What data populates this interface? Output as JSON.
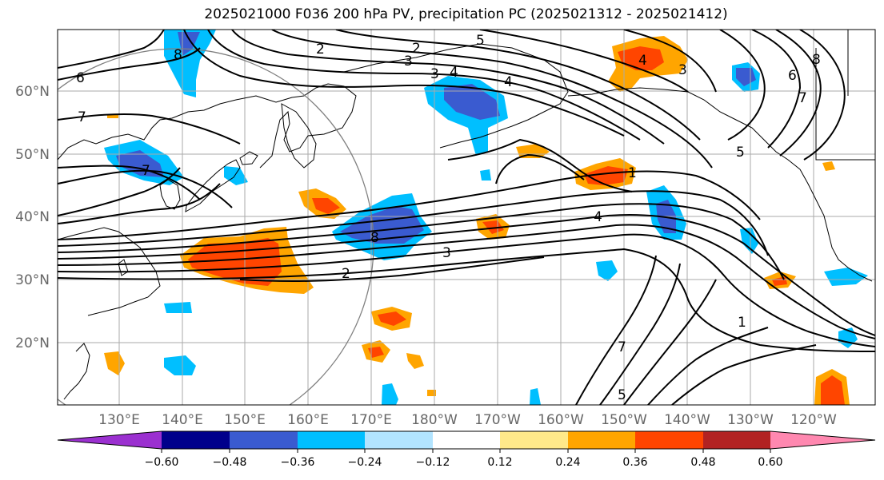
{
  "title": "2025021000 F036 200 hPa PV, precipitation PC (2025021312 - 2025021412)",
  "lon_labels": [
    "130°E",
    "140°E",
    "150°E",
    "160°E",
    "170°E",
    "180°W",
    "170°W",
    "160°W",
    "150°W",
    "140°W",
    "130°W",
    "120°W"
  ],
  "lat_labels": [
    "60°N",
    "50°N",
    "40°N",
    "30°N",
    "20°N"
  ],
  "colorbar": {
    "ticks": [
      "−0.60",
      "−0.48",
      "−0.36",
      "−0.24",
      "−0.12",
      "0.12",
      "0.24",
      "0.36",
      "0.48",
      "0.60"
    ],
    "colors": [
      "#9b30d0",
      "#00008b",
      "#3a5bd0",
      "#00bfff",
      "#b2e4ff",
      "#ffffff",
      "#ffe98a",
      "#ffa500",
      "#ff4500",
      "#b22222",
      "#ff88b0"
    ]
  },
  "contour_labels": {
    "c2a": "2",
    "c3a": "3",
    "c5a": "5",
    "c4a": "4",
    "c6a": "6",
    "c7a": "7",
    "c8a": "8",
    "c7b": "7",
    "c8b": "8",
    "c4b": "4",
    "c3b": "3",
    "c2b": "2",
    "c4c": "4",
    "c3c": "3",
    "c6c": "6",
    "c8c": "8",
    "c7c": "7",
    "c5c": "5",
    "c1a": "1",
    "c1b": "1",
    "c4d": "4",
    "c7d": "7",
    "c5d": "5",
    "c3d": "3",
    "c2d": "2"
  },
  "colors": {
    "grid": "#aaaaaa",
    "contour": "#000000",
    "ring": "#808080",
    "coast": "#000000"
  }
}
